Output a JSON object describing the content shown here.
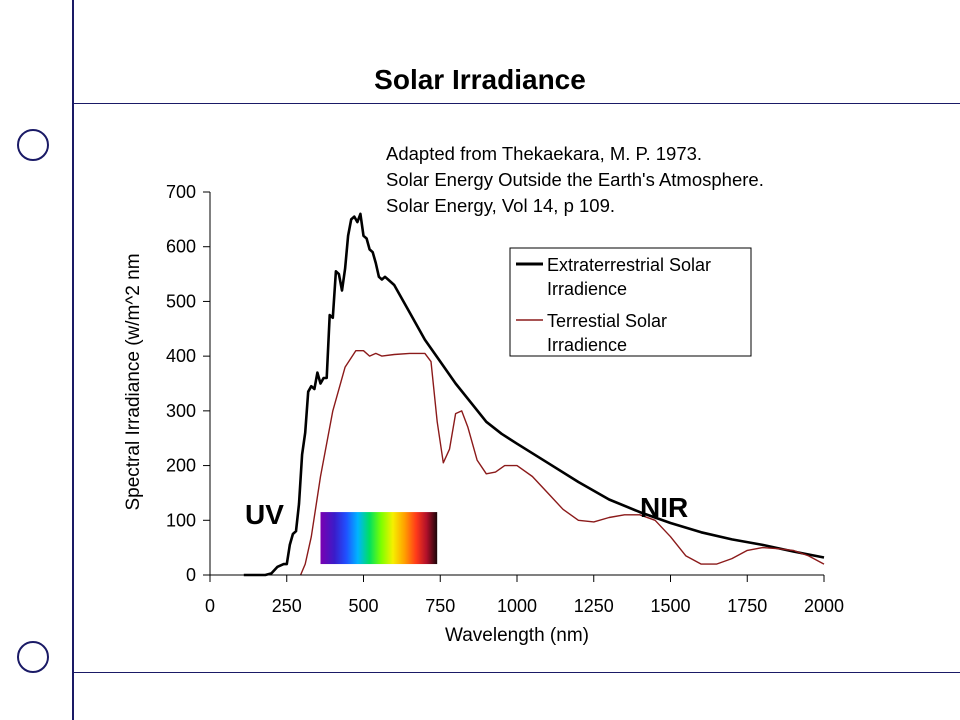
{
  "slide": {
    "title": "Solar Irradiance"
  },
  "chart_data": {
    "type": "line",
    "title": "",
    "xlabel": "Wavelength (nm)",
    "ylabel": "Spectral Irradiance (w/m^2 nm",
    "xlim": [
      0,
      2000
    ],
    "ylim": [
      0,
      700
    ],
    "x_ticks": [
      "0",
      "250",
      "500",
      "750",
      "1000",
      "1250",
      "1500",
      "1750",
      "2000"
    ],
    "y_ticks": [
      "0",
      "100",
      "200",
      "300",
      "400",
      "500",
      "600",
      "700"
    ],
    "grid": false,
    "legend_position": "top-right",
    "source_note": [
      "Adapted from Thekaekara, M. P.  1973.",
      "Solar Energy Outside the Earth's Atmosphere.",
      "Solar Energy, Vol 14, p 109."
    ],
    "annotations": {
      "uv": "UV",
      "nir": "NIR"
    },
    "visible_band": {
      "x": [
        360,
        740
      ],
      "y": [
        20,
        115
      ]
    },
    "series": [
      {
        "name_lines": [
          "Extraterrestrial Solar",
          "Irradience"
        ],
        "color": "#000000",
        "points": [
          [
            110,
            0
          ],
          [
            180,
            0
          ],
          [
            200,
            3
          ],
          [
            220,
            15
          ],
          [
            240,
            20
          ],
          [
            250,
            20
          ],
          [
            260,
            55
          ],
          [
            270,
            75
          ],
          [
            280,
            80
          ],
          [
            290,
            130
          ],
          [
            300,
            220
          ],
          [
            310,
            260
          ],
          [
            320,
            335
          ],
          [
            330,
            345
          ],
          [
            340,
            340
          ],
          [
            350,
            370
          ],
          [
            360,
            350
          ],
          [
            370,
            360
          ],
          [
            380,
            360
          ],
          [
            390,
            475
          ],
          [
            400,
            470
          ],
          [
            410,
            555
          ],
          [
            420,
            550
          ],
          [
            430,
            520
          ],
          [
            440,
            560
          ],
          [
            450,
            620
          ],
          [
            460,
            650
          ],
          [
            470,
            655
          ],
          [
            480,
            645
          ],
          [
            490,
            660
          ],
          [
            500,
            620
          ],
          [
            510,
            615
          ],
          [
            520,
            595
          ],
          [
            530,
            590
          ],
          [
            540,
            570
          ],
          [
            550,
            545
          ],
          [
            560,
            540
          ],
          [
            570,
            545
          ],
          [
            580,
            540
          ],
          [
            600,
            530
          ],
          [
            650,
            480
          ],
          [
            700,
            430
          ],
          [
            750,
            390
          ],
          [
            800,
            350
          ],
          [
            850,
            315
          ],
          [
            900,
            280
          ],
          [
            950,
            258
          ],
          [
            1000,
            240
          ],
          [
            1100,
            205
          ],
          [
            1200,
            170
          ],
          [
            1300,
            138
          ],
          [
            1400,
            115
          ],
          [
            1500,
            95
          ],
          [
            1600,
            78
          ],
          [
            1700,
            65
          ],
          [
            1800,
            55
          ],
          [
            1900,
            43
          ],
          [
            2000,
            32
          ]
        ]
      },
      {
        "name_lines": [
          "Terrestial Solar",
          "Irradience"
        ],
        "color": "#8b1a1a",
        "points": [
          [
            295,
            0
          ],
          [
            310,
            20
          ],
          [
            330,
            70
          ],
          [
            360,
            180
          ],
          [
            400,
            300
          ],
          [
            440,
            380
          ],
          [
            475,
            410
          ],
          [
            500,
            410
          ],
          [
            520,
            400
          ],
          [
            540,
            405
          ],
          [
            560,
            400
          ],
          [
            600,
            403
          ],
          [
            650,
            405
          ],
          [
            700,
            405
          ],
          [
            720,
            390
          ],
          [
            740,
            280
          ],
          [
            760,
            205
          ],
          [
            780,
            230
          ],
          [
            800,
            295
          ],
          [
            820,
            300
          ],
          [
            840,
            270
          ],
          [
            870,
            210
          ],
          [
            900,
            185
          ],
          [
            930,
            188
          ],
          [
            960,
            200
          ],
          [
            1000,
            200
          ],
          [
            1050,
            180
          ],
          [
            1100,
            150
          ],
          [
            1150,
            120
          ],
          [
            1200,
            100
          ],
          [
            1250,
            97
          ],
          [
            1300,
            105
          ],
          [
            1350,
            110
          ],
          [
            1400,
            110
          ],
          [
            1450,
            100
          ],
          [
            1500,
            70
          ],
          [
            1550,
            35
          ],
          [
            1600,
            20
          ],
          [
            1650,
            20
          ],
          [
            1700,
            30
          ],
          [
            1750,
            45
          ],
          [
            1800,
            50
          ],
          [
            1850,
            48
          ],
          [
            1900,
            45
          ],
          [
            1950,
            35
          ],
          [
            2000,
            20
          ]
        ]
      }
    ]
  }
}
